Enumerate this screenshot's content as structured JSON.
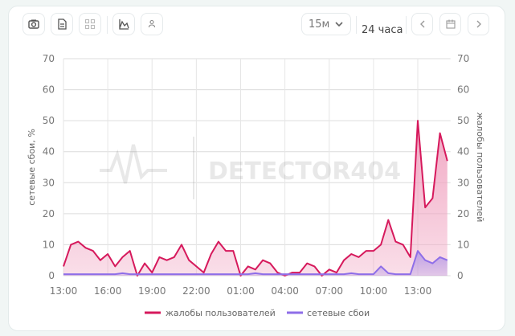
{
  "toolbar": {
    "buttons": [
      {
        "icon": "camera-icon"
      },
      {
        "icon": "document-icon"
      },
      {
        "icon": "grid-icon"
      },
      {
        "icon": "chart-area-icon"
      },
      {
        "icon": "person-icon"
      }
    ],
    "interval_select": "15м",
    "period_label": "24 часа",
    "prev_icon": "chevron-left-icon",
    "calendar_icon": "calendar-icon",
    "next_icon": "chevron-right-icon"
  },
  "watermark": "DETECTOR404",
  "chart_data": {
    "type": "area",
    "x_start": "13:00",
    "x_step_minutes": 30,
    "x_ticks": [
      "13:00",
      "16:00",
      "19:00",
      "22:00",
      "01:00",
      "04:00",
      "07:00",
      "10:00",
      "13:00"
    ],
    "ylim": [
      0,
      70
    ],
    "y_ticks": [
      0,
      10,
      20,
      30,
      40,
      50,
      60,
      70
    ],
    "ylabel_left": "сетевые сбои, %",
    "ylabel_right": "жалобы пользователей",
    "grid": true,
    "legend_position": "bottom",
    "series": [
      {
        "name": "жалобы пользователей",
        "color": "#d6195c",
        "fill": "#f0a3c0",
        "values": [
          3,
          10,
          11,
          9,
          8,
          5,
          7,
          3,
          6,
          8,
          0,
          4,
          1,
          6,
          5,
          6,
          10,
          5,
          3,
          1,
          7,
          11,
          8,
          8,
          0,
          3,
          2,
          5,
          4,
          1,
          0,
          1,
          1,
          4,
          3,
          0,
          2,
          1,
          5,
          7,
          6,
          8,
          8,
          10,
          18,
          11,
          10,
          6,
          50,
          22,
          25,
          46,
          37
        ]
      },
      {
        "name": "сетевые сбои",
        "color": "#8e6ee8",
        "fill": "#b79be6",
        "values": [
          0.5,
          0.5,
          0.5,
          0.5,
          0.5,
          0.5,
          0.5,
          0.5,
          0.8,
          0.5,
          0.5,
          0.5,
          0.5,
          0.5,
          0.5,
          0.5,
          0.5,
          0.5,
          0.5,
          0.5,
          0.5,
          0.5,
          0.5,
          0.5,
          0.5,
          0.5,
          0.8,
          0.5,
          0.5,
          0.5,
          0.5,
          0.5,
          0.5,
          0.5,
          0.5,
          0.5,
          0.5,
          0.5,
          0.5,
          0.8,
          0.5,
          0.5,
          0.5,
          3,
          0.8,
          0.5,
          0.5,
          0.5,
          8,
          5,
          4,
          6,
          5
        ]
      }
    ]
  }
}
